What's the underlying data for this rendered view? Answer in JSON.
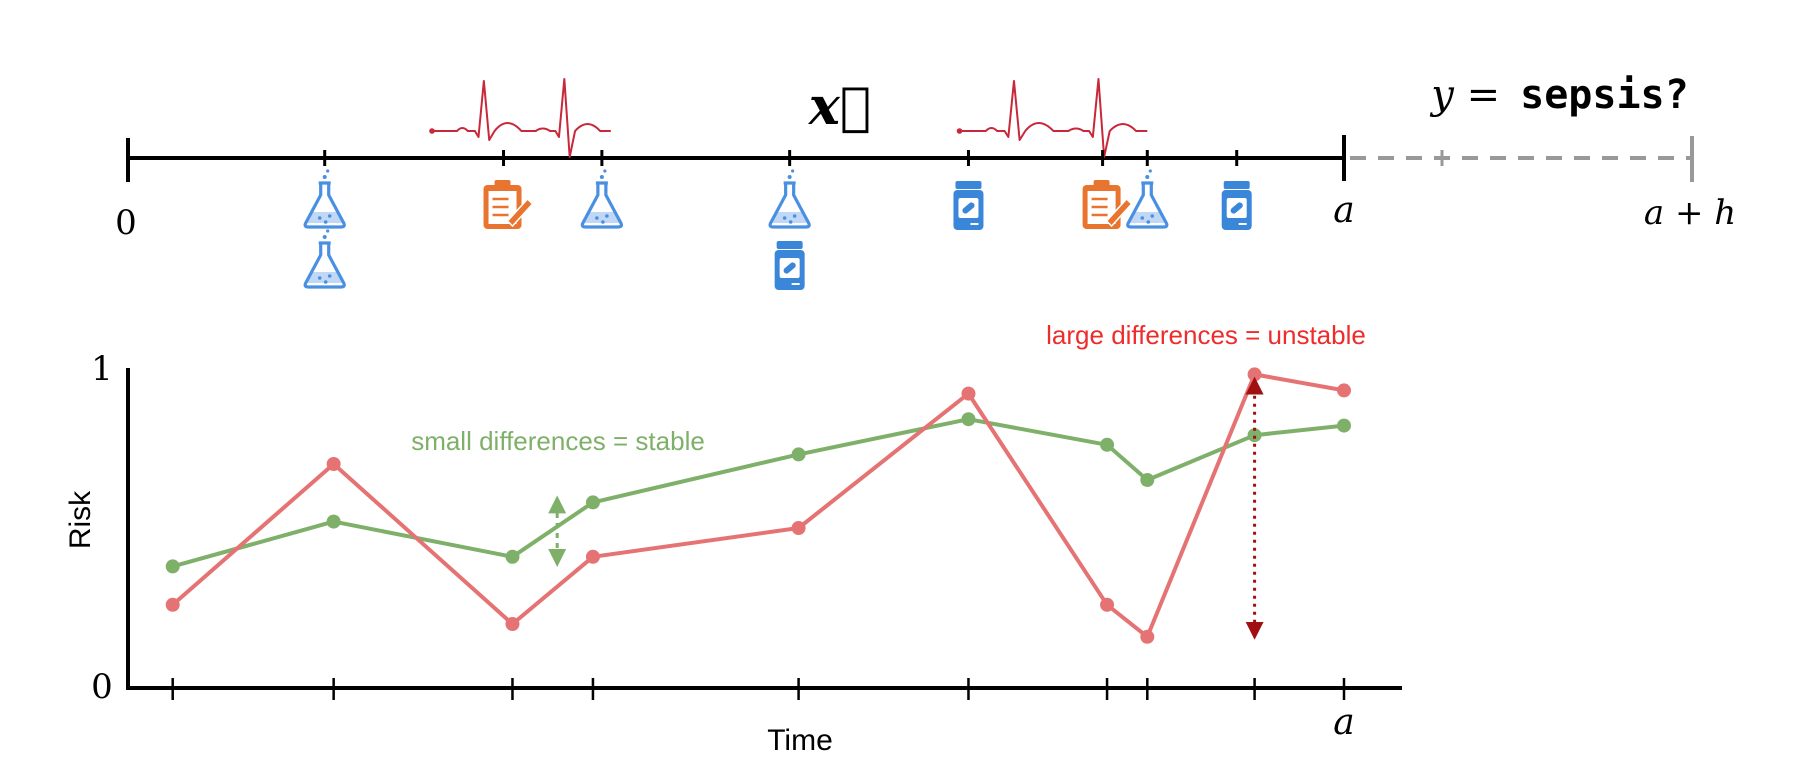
{
  "timeline": {
    "x_label": "x⃗",
    "start_label": "0",
    "end_label": "a",
    "horizon_label": "a + h",
    "target_prefix": "y =",
    "target_word": "sepsis?",
    "events": [
      {
        "t": 2.2,
        "icons": [
          "flask-icon",
          "flask-icon"
        ]
      },
      {
        "t": 4.2,
        "icons": [
          "clipboard-icon"
        ]
      },
      {
        "t": 5.3,
        "icons": [
          "flask-icon"
        ]
      },
      {
        "t": 7.4,
        "icons": [
          "flask-icon",
          "pill-bottle-icon"
        ]
      },
      {
        "t": 9.4,
        "icons": [
          "pill-bottle-icon"
        ]
      },
      {
        "t": 10.9,
        "icons": [
          "clipboard-icon"
        ]
      },
      {
        "t": 11.4,
        "icons": [
          "flask-icon"
        ]
      },
      {
        "t": 12.4,
        "icons": [
          "pill-bottle-icon"
        ]
      }
    ],
    "ecg_segments": [
      {
        "t_start": 3.4,
        "t_end": 5.4
      },
      {
        "t_start": 9.3,
        "t_end": 11.4
      }
    ],
    "colors": {
      "flask": "#4a90e2",
      "clipboard": "#e8742f",
      "pill": "#3a86d8",
      "ecg": "#c8283a"
    }
  },
  "chart_data": {
    "type": "line",
    "xlabel": "Time",
    "ylabel": "Risk",
    "x_end_label": "a",
    "xlim": [
      0,
      13.6
    ],
    "ylim": [
      0,
      1
    ],
    "y_ticks": [
      "0",
      "1"
    ],
    "x": [
      0.5,
      2.3,
      4.3,
      5.2,
      7.5,
      9.4,
      10.95,
      11.4,
      12.6,
      13.6
    ],
    "series": [
      {
        "color": "#7fb069",
        "values": [
          0.38,
          0.52,
          0.41,
          0.58,
          0.73,
          0.84,
          0.76,
          0.65,
          0.79,
          0.82
        ]
      },
      {
        "color": "#e57373",
        "values": [
          0.26,
          0.7,
          0.2,
          0.41,
          0.5,
          0.92,
          0.26,
          0.16,
          0.98,
          0.93
        ]
      }
    ],
    "annotations": [
      {
        "text": "small differences = stable",
        "color": "#7fb069",
        "arrow_x": 4.8,
        "arrow_from": 0.4,
        "arrow_to": 0.58
      },
      {
        "text": "large differences = unstable",
        "color": "#ee2c2c",
        "arrow_x": 12.6,
        "arrow_from": 0.16,
        "arrow_to": 0.97,
        "arrow_color": "#a01010"
      }
    ]
  }
}
